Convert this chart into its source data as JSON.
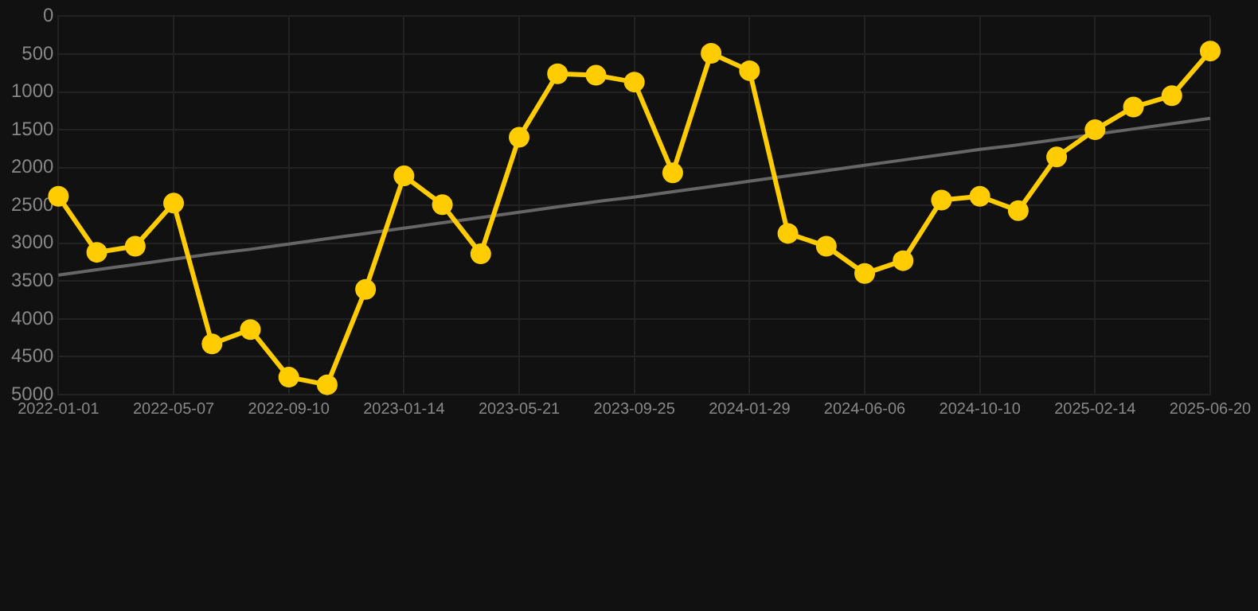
{
  "chart_data": {
    "type": "line",
    "categories": [
      "2022-01-01",
      null,
      null,
      "2022-05-07",
      null,
      null,
      "2022-09-10",
      null,
      null,
      "2023-01-14",
      null,
      null,
      "2023-05-21",
      null,
      null,
      "2023-09-25",
      null,
      null,
      "2024-01-29",
      null,
      null,
      "2024-06-06",
      null,
      null,
      "2024-10-10",
      null,
      null,
      "2025-02-14",
      null,
      null,
      "2025-06-20"
    ],
    "series": [
      {
        "color": "#ffcc00",
        "marker": "circle",
        "values": [
          2380,
          3120,
          3040,
          2470,
          4330,
          4140,
          4770,
          4870,
          3610,
          2110,
          2490,
          3140,
          1600,
          760,
          780,
          870,
          2070,
          490,
          720,
          2870,
          3040,
          3400,
          3230,
          2430,
          2380,
          2570,
          1860,
          1500,
          1200,
          1050,
          460
        ]
      },
      {
        "type": "line",
        "color": "#666666",
        "marker": "none",
        "values": [
          3420,
          3350,
          3280,
          3210,
          3140,
          3080,
          3010,
          2940,
          2870,
          2800,
          2730,
          2660,
          2590,
          2520,
          2450,
          2390,
          2320,
          2250,
          2180,
          2110,
          2040,
          1970,
          1900,
          1830,
          1760,
          1700,
          1630,
          null,
          1490,
          1420,
          1350
        ]
      }
    ],
    "ylim": [
      5000,
      0
    ],
    "yticks": [
      0,
      500,
      1000,
      1500,
      2000,
      2500,
      3000,
      3500,
      4000,
      4500,
      5000
    ],
    "grid": true,
    "legend": false
  }
}
